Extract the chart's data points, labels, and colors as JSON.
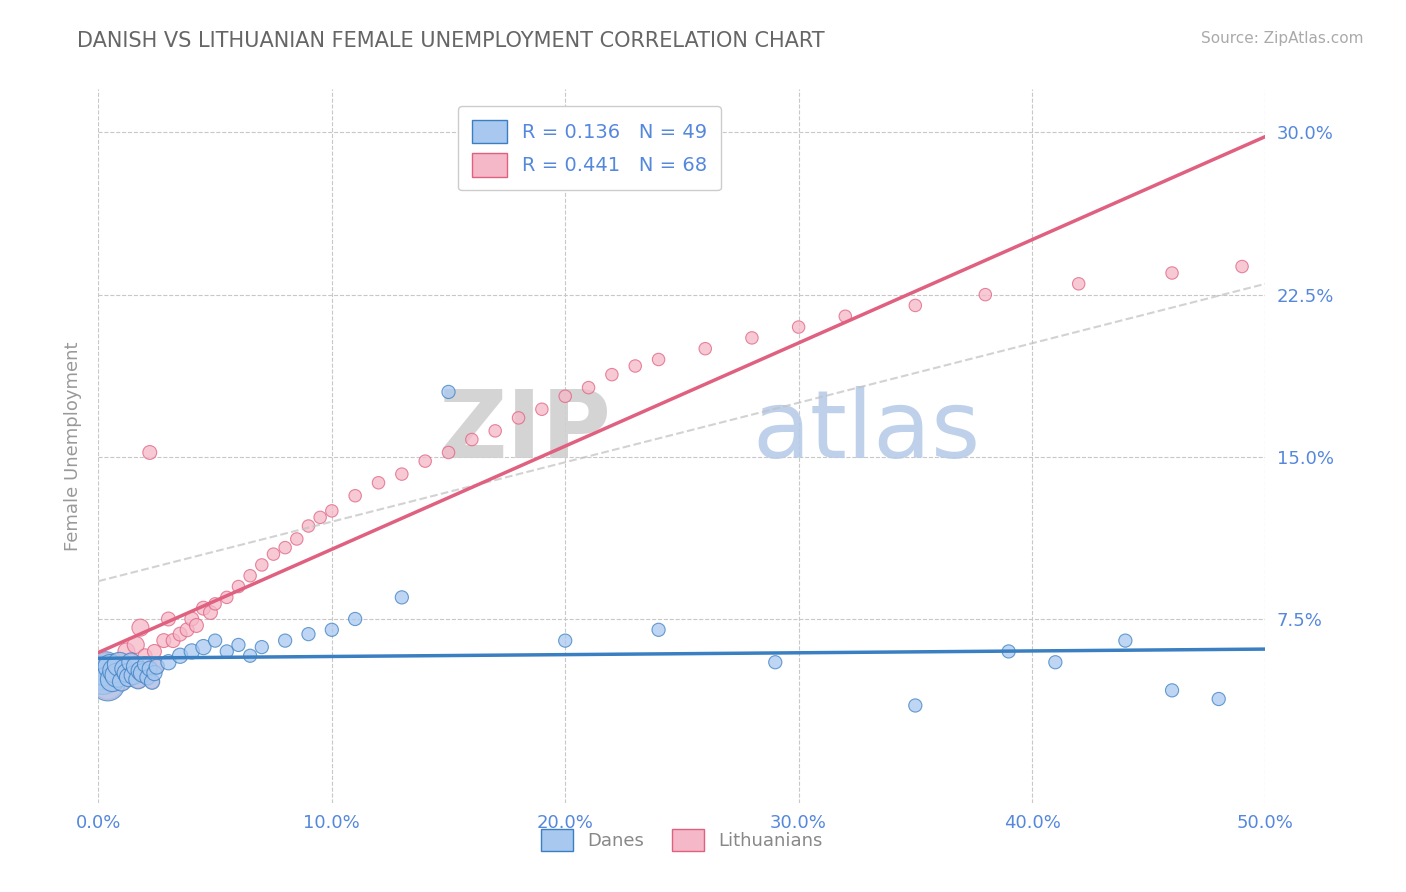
{
  "title": "DANISH VS LITHUANIAN FEMALE UNEMPLOYMENT CORRELATION CHART",
  "source": "Source: ZipAtlas.com",
  "ylabel": "Female Unemployment",
  "xlim": [
    0.0,
    0.5
  ],
  "ylim": [
    -0.01,
    0.32
  ],
  "xticks": [
    0.0,
    0.1,
    0.2,
    0.3,
    0.4,
    0.5
  ],
  "xtick_labels": [
    "0.0%",
    "10.0%",
    "20.0%",
    "30.0%",
    "40.0%",
    "50.0%"
  ],
  "yticks": [
    0.075,
    0.15,
    0.225,
    0.3
  ],
  "ytick_labels": [
    "7.5%",
    "15.0%",
    "22.5%",
    "30.0%"
  ],
  "danes_color": "#a8c8f0",
  "danes_line_color": "#3a7fc1",
  "lith_color": "#f5b8c8",
  "lith_line_color": "#e06080",
  "legend_r_danes": "R = 0.136",
  "legend_n_danes": "N = 49",
  "legend_r_lith": "R = 0.441",
  "legend_n_lith": "N = 68",
  "watermark_zip": "ZIP",
  "watermark_atlas": "atlas",
  "background_color": "#ffffff",
  "grid_color": "#c8c8c8",
  "title_color": "#666666",
  "tick_color": "#5588dd",
  "danes_x": [
    0.001,
    0.002,
    0.003,
    0.004,
    0.005,
    0.006,
    0.007,
    0.008,
    0.009,
    0.01,
    0.011,
    0.012,
    0.013,
    0.014,
    0.015,
    0.016,
    0.017,
    0.018,
    0.019,
    0.02,
    0.021,
    0.022,
    0.023,
    0.024,
    0.025,
    0.03,
    0.035,
    0.04,
    0.045,
    0.05,
    0.055,
    0.06,
    0.065,
    0.07,
    0.08,
    0.09,
    0.1,
    0.11,
    0.13,
    0.15,
    0.2,
    0.24,
    0.29,
    0.35,
    0.39,
    0.41,
    0.44,
    0.46,
    0.48
  ],
  "danes_y": [
    0.05,
    0.048,
    0.052,
    0.045,
    0.053,
    0.047,
    0.051,
    0.049,
    0.054,
    0.046,
    0.052,
    0.05,
    0.048,
    0.055,
    0.049,
    0.053,
    0.047,
    0.051,
    0.05,
    0.054,
    0.048,
    0.052,
    0.046,
    0.05,
    0.053,
    0.055,
    0.058,
    0.06,
    0.062,
    0.065,
    0.06,
    0.063,
    0.058,
    0.062,
    0.065,
    0.068,
    0.07,
    0.075,
    0.085,
    0.18,
    0.065,
    0.07,
    0.055,
    0.035,
    0.06,
    0.055,
    0.065,
    0.042,
    0.038
  ],
  "lith_x": [
    0.001,
    0.002,
    0.003,
    0.004,
    0.005,
    0.006,
    0.007,
    0.008,
    0.009,
    0.01,
    0.011,
    0.012,
    0.013,
    0.014,
    0.015,
    0.016,
    0.017,
    0.018,
    0.019,
    0.02,
    0.021,
    0.022,
    0.023,
    0.024,
    0.025,
    0.028,
    0.03,
    0.032,
    0.035,
    0.038,
    0.04,
    0.042,
    0.045,
    0.048,
    0.05,
    0.055,
    0.06,
    0.065,
    0.07,
    0.075,
    0.08,
    0.085,
    0.09,
    0.095,
    0.1,
    0.11,
    0.12,
    0.13,
    0.14,
    0.15,
    0.16,
    0.17,
    0.18,
    0.19,
    0.2,
    0.21,
    0.22,
    0.23,
    0.24,
    0.26,
    0.28,
    0.3,
    0.32,
    0.35,
    0.38,
    0.42,
    0.46,
    0.49
  ],
  "lith_y": [
    0.05,
    0.048,
    0.052,
    0.045,
    0.053,
    0.047,
    0.051,
    0.049,
    0.054,
    0.046,
    0.052,
    0.06,
    0.048,
    0.055,
    0.049,
    0.063,
    0.047,
    0.071,
    0.05,
    0.058,
    0.048,
    0.152,
    0.046,
    0.06,
    0.053,
    0.065,
    0.075,
    0.065,
    0.068,
    0.07,
    0.075,
    0.072,
    0.08,
    0.078,
    0.082,
    0.085,
    0.09,
    0.095,
    0.1,
    0.105,
    0.108,
    0.112,
    0.118,
    0.122,
    0.125,
    0.132,
    0.138,
    0.142,
    0.148,
    0.152,
    0.158,
    0.162,
    0.168,
    0.172,
    0.178,
    0.182,
    0.188,
    0.192,
    0.195,
    0.2,
    0.205,
    0.21,
    0.215,
    0.22,
    0.225,
    0.23,
    0.235,
    0.238
  ]
}
